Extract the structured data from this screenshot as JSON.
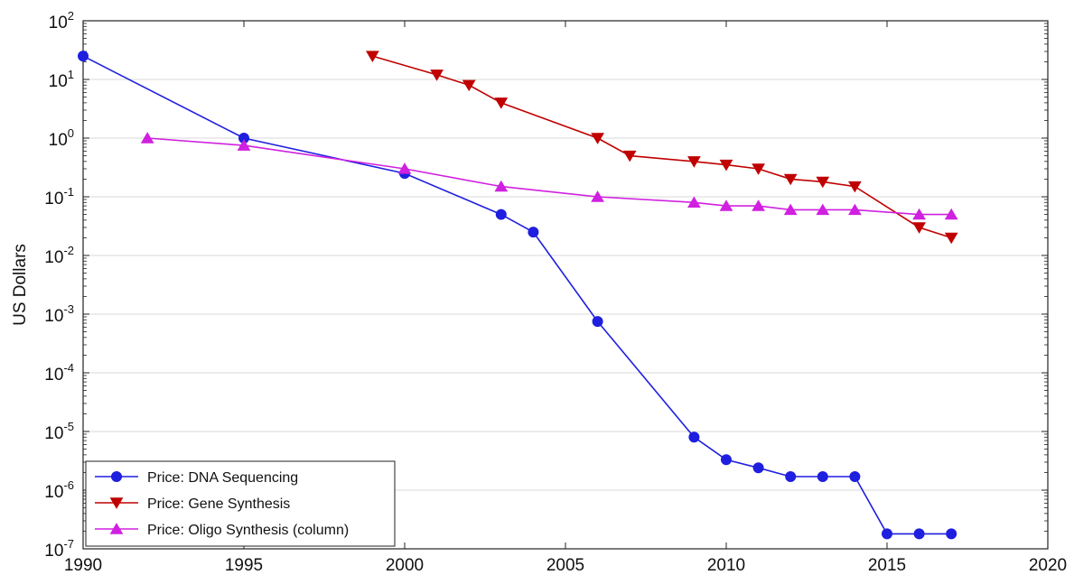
{
  "chart_data": {
    "type": "line",
    "title": "",
    "xlabel": "",
    "ylabel": "US Dollars",
    "xlim": [
      1990,
      2020
    ],
    "ylim": [
      1e-07,
      100
    ],
    "yscale": "log",
    "grid": "horizontal",
    "legend_position": "bottom-left",
    "x_ticks": [
      1990,
      1995,
      2000,
      2005,
      2010,
      2015,
      2020
    ],
    "y_ticks": [
      {
        "base": "10",
        "exp": "2",
        "value": 100
      },
      {
        "base": "10",
        "exp": "1",
        "value": 10
      },
      {
        "base": "10",
        "exp": "0",
        "value": 1
      },
      {
        "base": "10",
        "exp": "-1",
        "value": 0.1
      },
      {
        "base": "10",
        "exp": "-2",
        "value": 0.01
      },
      {
        "base": "10",
        "exp": "-3",
        "value": 0.001
      },
      {
        "base": "10",
        "exp": "-4",
        "value": 0.0001
      },
      {
        "base": "10",
        "exp": "-5",
        "value": 1e-05
      },
      {
        "base": "10",
        "exp": "-6",
        "value": 1e-06
      },
      {
        "base": "10",
        "exp": "-7",
        "value": 1e-07
      }
    ],
    "series": [
      {
        "name": "Price: DNA Sequencing",
        "color": "#1f1fe0",
        "marker": "circle",
        "x": [
          1990,
          1995,
          2000,
          2003,
          2004,
          2006,
          2009,
          2010,
          2011,
          2012,
          2013,
          2014,
          2015,
          2016,
          2017
        ],
        "y": [
          25,
          1,
          0.25,
          0.05,
          0.025,
          0.00075,
          8e-06,
          3.3e-06,
          2.4e-06,
          1.7e-06,
          1.7e-06,
          1.7e-06,
          1.8e-07,
          1.8e-07,
          1.8e-07
        ]
      },
      {
        "name": "Price: Gene Synthesis",
        "color": "#c00000",
        "marker": "triangle-down",
        "x": [
          1999,
          2001,
          2002,
          2003,
          2006,
          2007,
          2009,
          2010,
          2011,
          2012,
          2013,
          2014,
          2016,
          2017
        ],
        "y": [
          25,
          12,
          8,
          4,
          1,
          0.5,
          0.4,
          0.35,
          0.3,
          0.2,
          0.18,
          0.15,
          0.03,
          0.02
        ]
      },
      {
        "name": "Price: Oligo Synthesis (column)",
        "color": "#d020e0",
        "marker": "triangle-up",
        "x": [
          1992,
          1995,
          2000,
          2003,
          2006,
          2009,
          2010,
          2011,
          2012,
          2013,
          2014,
          2016,
          2017
        ],
        "y": [
          1,
          0.75,
          0.3,
          0.15,
          0.1,
          0.08,
          0.07,
          0.07,
          0.06,
          0.06,
          0.06,
          0.05,
          0.05
        ]
      }
    ]
  }
}
